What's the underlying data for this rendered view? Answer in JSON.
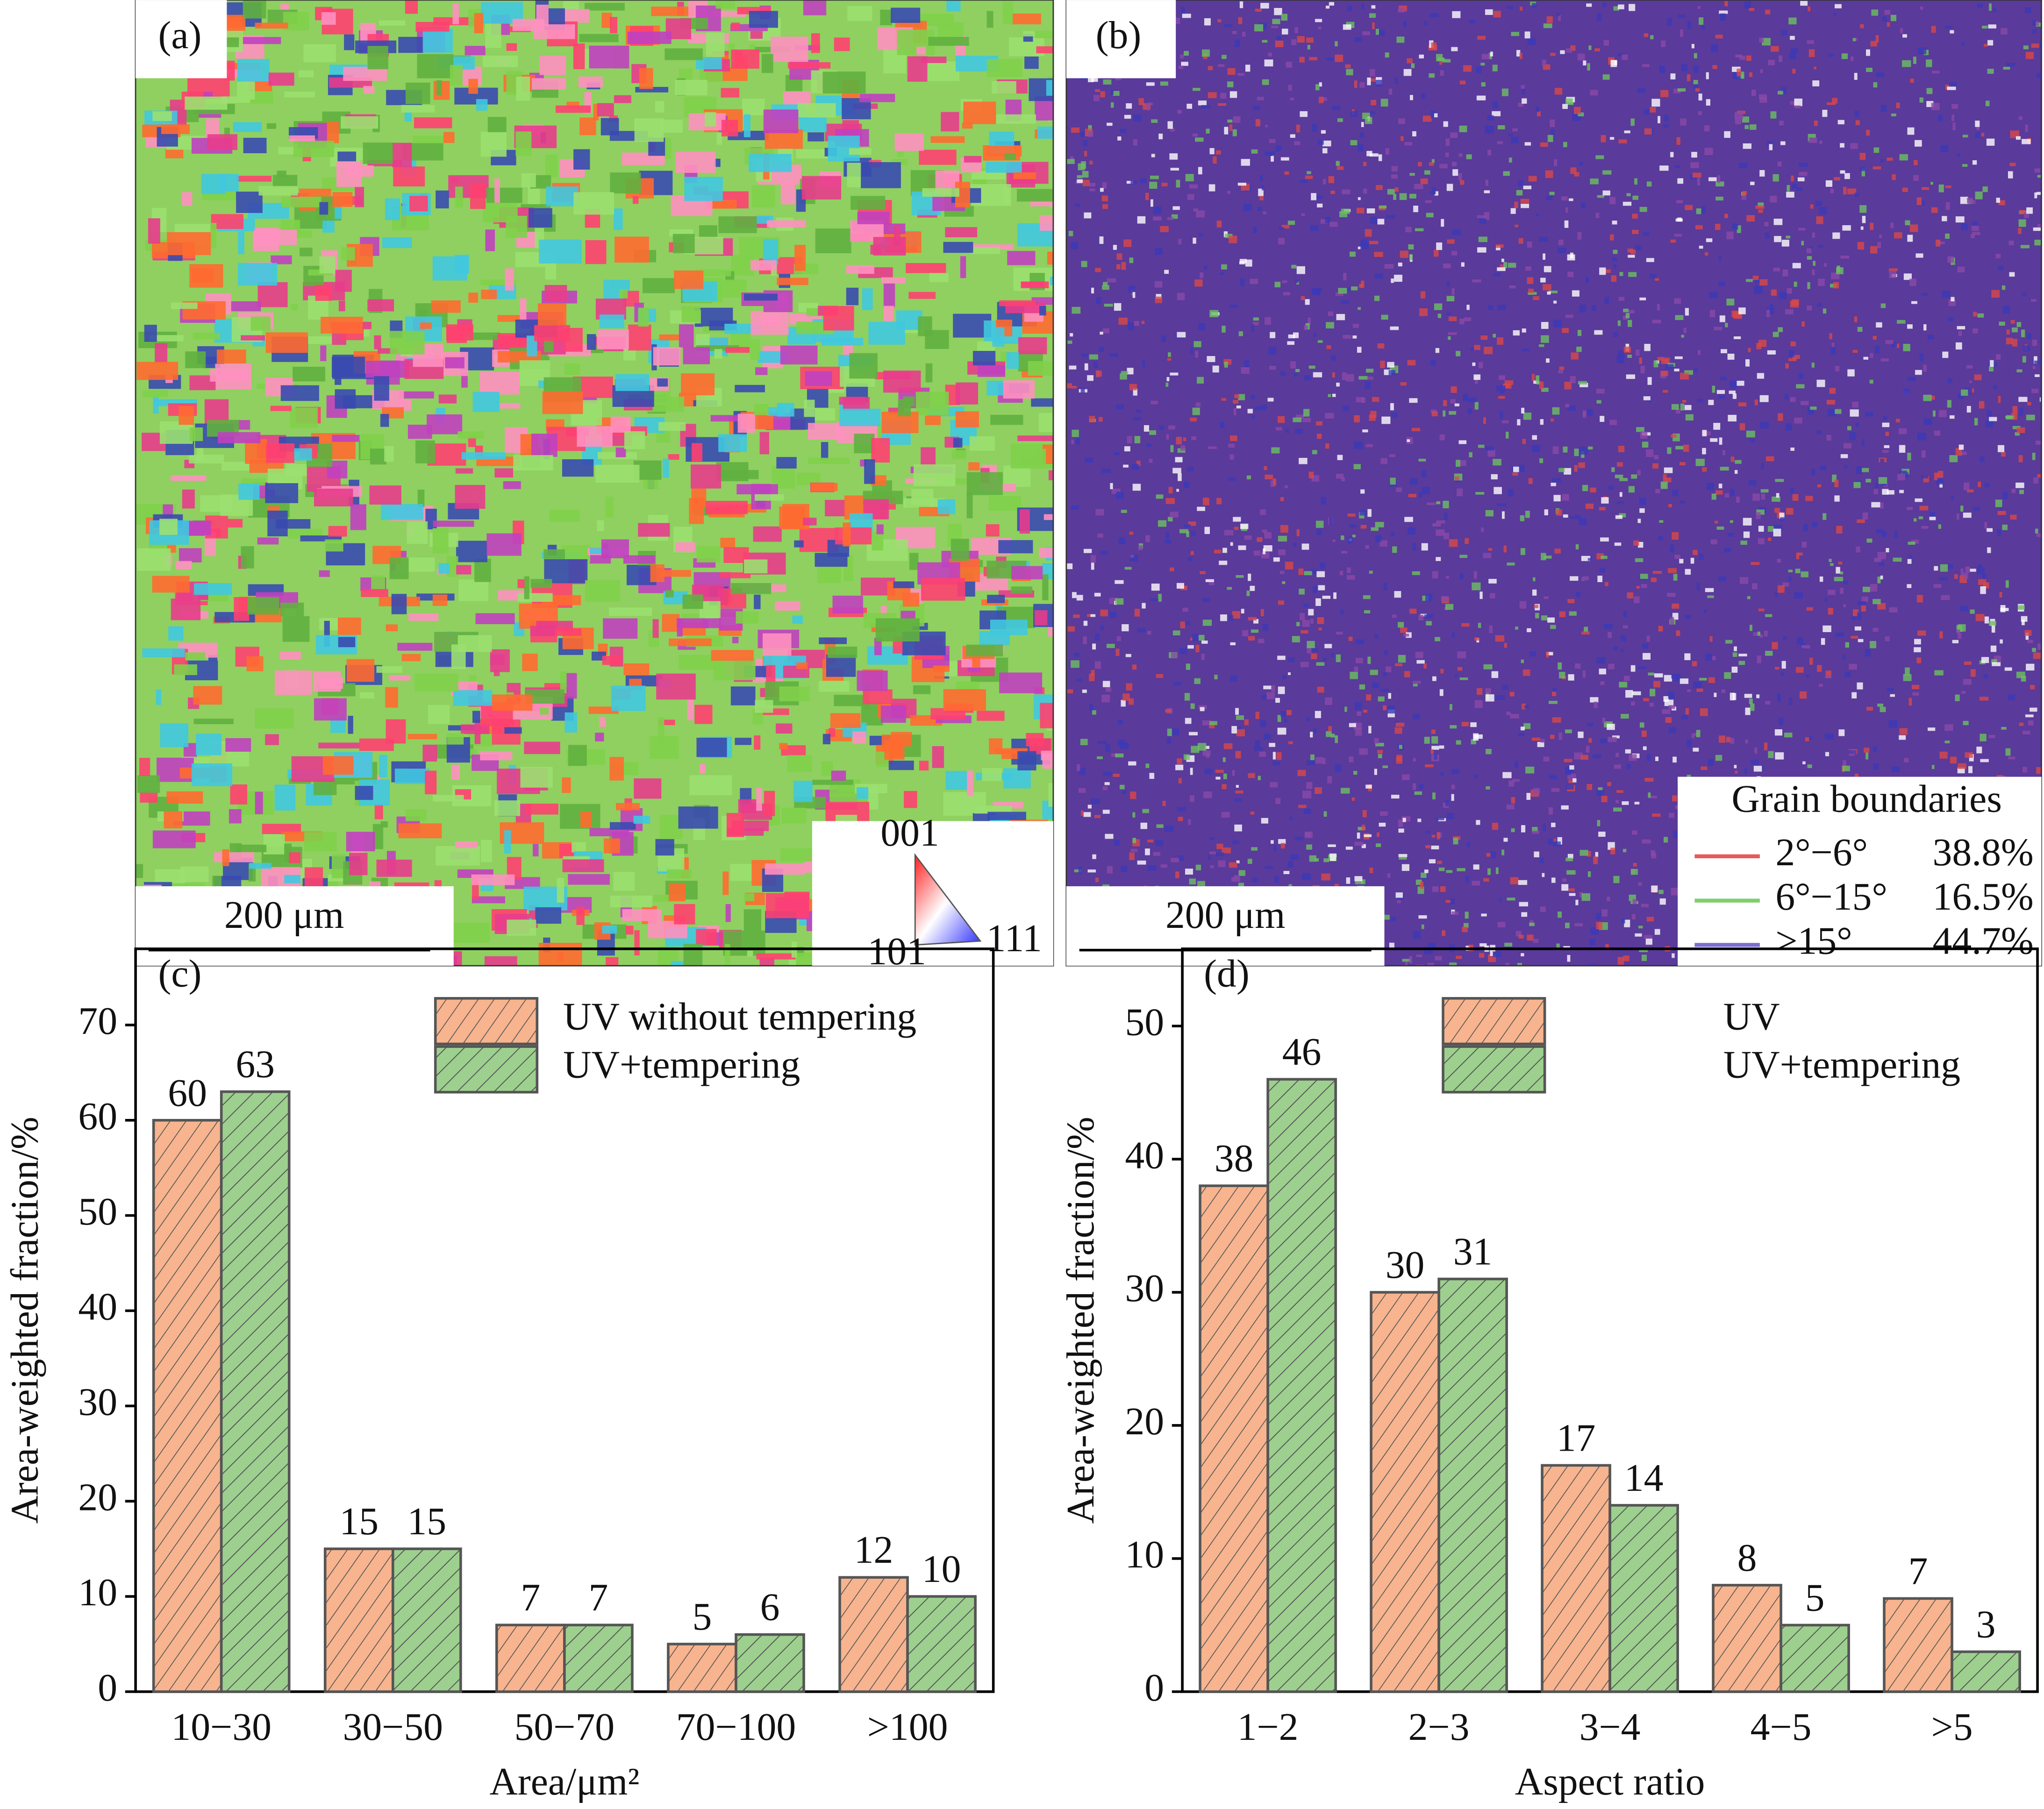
{
  "images": [
    {
      "label": "(a)",
      "scale_bar": "200 μm",
      "key": [
        "001",
        "101",
        "111"
      ]
    },
    {
      "label": "(b)",
      "scale_bar": "200 μm",
      "legend_title": "Grain boundaries",
      "legend": [
        {
          "name": "2°−6°",
          "value": "38.8%",
          "color": "#e85a5a"
        },
        {
          "name": "6°−15°",
          "value": "16.5%",
          "color": "#7fcf6f"
        },
        {
          "name": ">15°",
          "value": "44.7%",
          "color": "#7a6fd0"
        }
      ]
    }
  ],
  "chart_data": [
    {
      "type": "bar",
      "label": "(c)",
      "xlabel": "Area/μm²",
      "ylabel": "Area-weighted fraction/%",
      "categories": [
        "10−30",
        "30−50",
        "50−70",
        "70−100",
        ">100"
      ],
      "series": [
        {
          "name": "UV without tempering",
          "color": "#f7b48e",
          "values": [
            60,
            15,
            7,
            5,
            12
          ]
        },
        {
          "name": "UV+tempering",
          "color": "#9dd08e",
          "values": [
            63,
            15,
            7,
            6,
            10
          ]
        }
      ],
      "ylim": [
        0,
        78
      ],
      "yticks": [
        0,
        10,
        20,
        30,
        40,
        50,
        60,
        70
      ]
    },
    {
      "type": "bar",
      "label": "(d)",
      "xlabel": "Aspect ratio",
      "ylabel": "Area-weighted fraction/%",
      "categories": [
        "1−2",
        "2−3",
        "3−4",
        "4−5",
        ">5"
      ],
      "series": [
        {
          "name": "UV",
          "color": "#f7b48e",
          "values": [
            38,
            30,
            17,
            8,
            7
          ]
        },
        {
          "name": "UV+tempering",
          "color": "#9dd08e",
          "values": [
            46,
            31,
            14,
            5,
            3
          ]
        }
      ],
      "ylim": [
        0,
        55.8
      ],
      "yticks": [
        0,
        10,
        20,
        30,
        40,
        50
      ]
    }
  ]
}
